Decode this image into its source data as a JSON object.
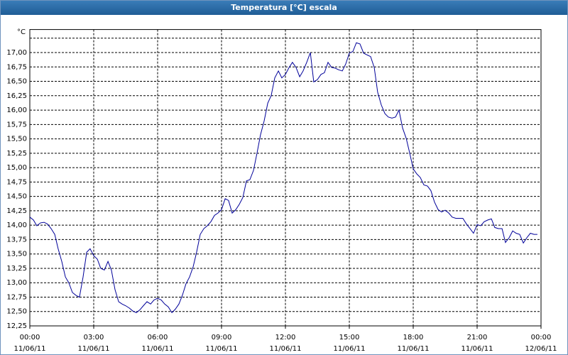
{
  "chart_data": {
    "type": "line",
    "title": "Temperatura [°C] escala",
    "y_label": "°C",
    "color": "#000099",
    "xlim": [
      0,
      24
    ],
    "ylim": [
      12.25,
      17.4
    ],
    "xticks": [
      {
        "value": 0,
        "label": "00:00"
      },
      {
        "value": 3,
        "label": "03:00"
      },
      {
        "value": 6,
        "label": "06:00"
      },
      {
        "value": 9,
        "label": "09:00"
      },
      {
        "value": 12,
        "label": "12:00"
      },
      {
        "value": 15,
        "label": "15:00"
      },
      {
        "value": 18,
        "label": "18:00"
      },
      {
        "value": 21,
        "label": "21:00"
      },
      {
        "value": 24,
        "label": "00:00"
      }
    ],
    "xtick_dates": [
      "11/06/11",
      "11/06/11",
      "11/06/11",
      "11/06/11",
      "11/06/11",
      "11/06/11",
      "11/06/11",
      "11/06/11",
      "12/06/11"
    ],
    "yticks": [
      {
        "value": 12.25,
        "label": "12,25"
      },
      {
        "value": 12.5,
        "label": "12,50"
      },
      {
        "value": 12.75,
        "label": "12,75"
      },
      {
        "value": 13,
        "label": "13,00"
      },
      {
        "value": 13.25,
        "label": "13,25"
      },
      {
        "value": 13.5,
        "label": "13,50"
      },
      {
        "value": 13.75,
        "label": "13,75"
      },
      {
        "value": 14,
        "label": "14,00"
      },
      {
        "value": 14.25,
        "label": "14,25"
      },
      {
        "value": 14.5,
        "label": "14,50"
      },
      {
        "value": 14.75,
        "label": "14,75"
      },
      {
        "value": 15,
        "label": "15,00"
      },
      {
        "value": 15.25,
        "label": "15,25"
      },
      {
        "value": 15.5,
        "label": "15,50"
      },
      {
        "value": 15.75,
        "label": "15,75"
      },
      {
        "value": 16,
        "label": "16,00"
      },
      {
        "value": 16.25,
        "label": "16,25"
      },
      {
        "value": 16.5,
        "label": "16,50"
      },
      {
        "value": 16.75,
        "label": "16,75"
      },
      {
        "value": 17,
        "label": "17,00"
      },
      {
        "value": 17.25,
        "label": null
      }
    ],
    "grid": true,
    "x": [
      0,
      0.17,
      0.33,
      0.5,
      0.67,
      0.83,
      1,
      1.17,
      1.33,
      1.5,
      1.67,
      1.83,
      2,
      2.17,
      2.33,
      2.5,
      2.67,
      2.83,
      3,
      3.17,
      3.33,
      3.5,
      3.67,
      3.83,
      4,
      4.17,
      4.33,
      4.5,
      4.67,
      4.83,
      5,
      5.17,
      5.33,
      5.5,
      5.67,
      5.83,
      6,
      6.17,
      6.33,
      6.5,
      6.67,
      6.83,
      7,
      7.17,
      7.33,
      7.5,
      7.67,
      7.83,
      8,
      8.17,
      8.33,
      8.5,
      8.67,
      8.83,
      9,
      9.17,
      9.33,
      9.5,
      9.67,
      9.83,
      10,
      10.17,
      10.33,
      10.5,
      10.67,
      10.83,
      11,
      11.17,
      11.33,
      11.5,
      11.67,
      11.83,
      12,
      12.17,
      12.33,
      12.5,
      12.67,
      12.83,
      13,
      13.17,
      13.33,
      13.5,
      13.67,
      13.83,
      14,
      14.17,
      14.33,
      14.5,
      14.67,
      14.83,
      15,
      15.17,
      15.33,
      15.5,
      15.67,
      15.83,
      16,
      16.17,
      16.33,
      16.5,
      16.67,
      16.83,
      17,
      17.17,
      17.33,
      17.5,
      17.67,
      17.83,
      18,
      18.17,
      18.33,
      18.5,
      18.67,
      18.83,
      19,
      19.17,
      19.33,
      19.5,
      19.67,
      19.83,
      20,
      20.17,
      20.33,
      20.5,
      20.67,
      20.83,
      21,
      21.17,
      21.33,
      21.5,
      21.67,
      21.83,
      22,
      22.17,
      22.33,
      22.5,
      22.67,
      22.83,
      23,
      23.17,
      23.33,
      23.5,
      23.67,
      23.83
    ],
    "values": [
      14.14,
      14.09,
      13.99,
      14.04,
      14.05,
      14.02,
      13.94,
      13.84,
      13.59,
      13.37,
      13.1,
      13.0,
      12.83,
      12.78,
      12.75,
      13.1,
      13.53,
      13.59,
      13.47,
      13.41,
      13.25,
      13.22,
      13.37,
      13.22,
      12.88,
      12.67,
      12.63,
      12.6,
      12.56,
      12.51,
      12.48,
      12.53,
      12.6,
      12.67,
      12.63,
      12.7,
      12.73,
      12.7,
      12.63,
      12.58,
      12.48,
      12.54,
      12.63,
      12.79,
      12.98,
      13.1,
      13.28,
      13.53,
      13.84,
      13.94,
      13.99,
      14.06,
      14.17,
      14.21,
      14.27,
      14.46,
      14.43,
      14.21,
      14.27,
      14.36,
      14.48,
      14.77,
      14.79,
      14.95,
      15.26,
      15.57,
      15.81,
      16.12,
      16.25,
      16.56,
      16.68,
      16.56,
      16.62,
      16.74,
      16.83,
      16.74,
      16.58,
      16.68,
      16.83,
      17.0,
      16.49,
      16.53,
      16.62,
      16.65,
      16.83,
      16.74,
      16.73,
      16.7,
      16.68,
      16.8,
      16.99,
      17.02,
      17.17,
      17.15,
      16.99,
      16.96,
      16.93,
      16.74,
      16.31,
      16.09,
      15.94,
      15.88,
      15.86,
      15.88,
      16.0,
      15.69,
      15.51,
      15.26,
      14.98,
      14.89,
      14.83,
      14.7,
      14.68,
      14.6,
      14.4,
      14.27,
      14.23,
      14.26,
      14.21,
      14.14,
      14.12,
      14.12,
      14.12,
      14.02,
      13.94,
      13.86,
      14.01,
      13.99,
      14.06,
      14.09,
      14.11,
      13.96,
      13.94,
      13.94,
      13.7,
      13.78,
      13.9,
      13.86,
      13.84,
      13.69,
      13.78,
      13.86,
      13.84,
      13.84
    ]
  }
}
